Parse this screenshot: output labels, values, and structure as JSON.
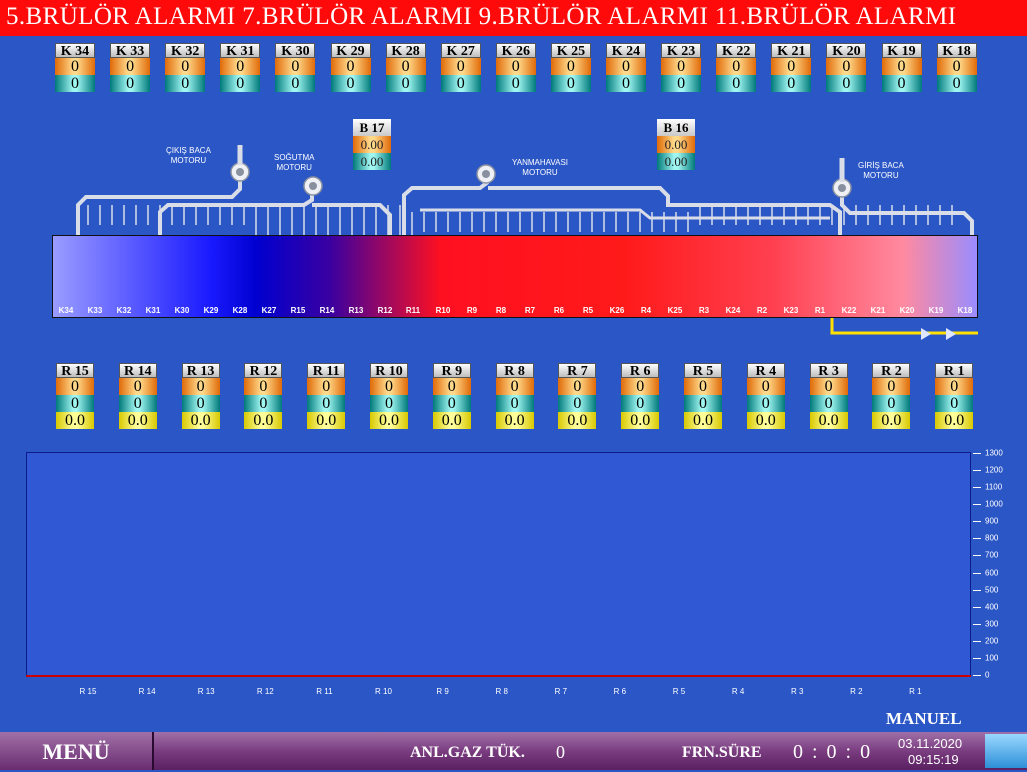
{
  "alarm_banner": "5.BRÜLÖR ALARMI  7.BRÜLÖR ALARMI  9.BRÜLÖR ALARMI  11.BRÜLÖR ALARMI",
  "k_sensors": [
    {
      "label": "K 34",
      "v1": "0",
      "v2": "0"
    },
    {
      "label": "K 33",
      "v1": "0",
      "v2": "0"
    },
    {
      "label": "K 32",
      "v1": "0",
      "v2": "0"
    },
    {
      "label": "K 31",
      "v1": "0",
      "v2": "0"
    },
    {
      "label": "K 30",
      "v1": "0",
      "v2": "0"
    },
    {
      "label": "K 29",
      "v1": "0",
      "v2": "0"
    },
    {
      "label": "K 28",
      "v1": "0",
      "v2": "0"
    },
    {
      "label": "K 27",
      "v1": "0",
      "v2": "0"
    },
    {
      "label": "K 26",
      "v1": "0",
      "v2": "0"
    },
    {
      "label": "K 25",
      "v1": "0",
      "v2": "0"
    },
    {
      "label": "K 24",
      "v1": "0",
      "v2": "0"
    },
    {
      "label": "K 23",
      "v1": "0",
      "v2": "0"
    },
    {
      "label": "K 22",
      "v1": "0",
      "v2": "0"
    },
    {
      "label": "K 21",
      "v1": "0",
      "v2": "0"
    },
    {
      "label": "K 20",
      "v1": "0",
      "v2": "0"
    },
    {
      "label": "K 19",
      "v1": "0",
      "v2": "0"
    },
    {
      "label": "K 18",
      "v1": "0",
      "v2": "0"
    }
  ],
  "b_sensors": [
    {
      "label": "B 17",
      "v1": "0.00",
      "v2": "0.00"
    },
    {
      "label": "B 16",
      "v1": "0.00",
      "v2": "0.00"
    }
  ],
  "motors": {
    "exhaust": "ÇIKIŞ BACA\nMOTORU",
    "cooling": "SOĞUTMA\nMOTORU",
    "combustion": "YANMAHAVASI\nMOTORU",
    "intake": "GİRİŞ BACA\nMOTORU"
  },
  "zones": [
    "K34",
    "K33",
    "K32",
    "K31",
    "K30",
    "K29",
    "K28",
    "K27",
    "R15",
    "R14",
    "R13",
    "R12",
    "R11",
    "R10",
    "R9",
    "R8",
    "R7",
    "R6",
    "R5",
    "K26",
    "R4",
    "K25",
    "R3",
    "K24",
    "R2",
    "K23",
    "R1",
    "K22",
    "K21",
    "K20",
    "K19",
    "K18"
  ],
  "r_sensors": [
    {
      "label": "R 15",
      "v1": "0",
      "v2": "0",
      "v3": "0.0"
    },
    {
      "label": "R 14",
      "v1": "0",
      "v2": "0",
      "v3": "0.0"
    },
    {
      "label": "R 13",
      "v1": "0",
      "v2": "0",
      "v3": "0.0"
    },
    {
      "label": "R 12",
      "v1": "0",
      "v2": "0",
      "v3": "0.0"
    },
    {
      "label": "R 11",
      "v1": "0",
      "v2": "0",
      "v3": "0.0"
    },
    {
      "label": "R 10",
      "v1": "0",
      "v2": "0",
      "v3": "0.0"
    },
    {
      "label": "R 9",
      "v1": "0",
      "v2": "0",
      "v3": "0.0"
    },
    {
      "label": "R 8",
      "v1": "0",
      "v2": "0",
      "v3": "0.0"
    },
    {
      "label": "R 7",
      "v1": "0",
      "v2": "0",
      "v3": "0.0"
    },
    {
      "label": "R 6",
      "v1": "0",
      "v2": "0",
      "v3": "0.0"
    },
    {
      "label": "R 5",
      "v1": "0",
      "v2": "0",
      "v3": "0.0"
    },
    {
      "label": "R 4",
      "v1": "0",
      "v2": "0",
      "v3": "0.0"
    },
    {
      "label": "R 3",
      "v1": "0",
      "v2": "0",
      "v3": "0.0"
    },
    {
      "label": "R 2",
      "v1": "0",
      "v2": "0",
      "v3": "0.0"
    },
    {
      "label": "R 1",
      "v1": "0",
      "v2": "0",
      "v3": "0.0"
    }
  ],
  "chart_data": {
    "type": "bar",
    "categories": [
      "R 15",
      "R 14",
      "R 13",
      "R 12",
      "R 11",
      "R 10",
      "R 9",
      "R 8",
      "R 7",
      "R 6",
      "R 5",
      "R 4",
      "R 3",
      "R 2",
      "R 1"
    ],
    "values": [
      0,
      0,
      0,
      0,
      0,
      0,
      0,
      0,
      0,
      0,
      0,
      0,
      0,
      0,
      0
    ],
    "ylim": [
      0,
      1300
    ],
    "yticks": [
      0,
      100,
      200,
      300,
      400,
      500,
      600,
      700,
      800,
      900,
      1000,
      1100,
      1200,
      1300
    ],
    "legend": "none",
    "grid": false
  },
  "mode": "MANUEL",
  "footer": {
    "menu": "MENÜ",
    "gas_label": "ANL.GAZ TÜK.",
    "gas_value": "0",
    "duration_label": "FRN.SÜRE",
    "duration_value": "0 : 0 : 0",
    "date": "03.11.2020",
    "time": "09:15:19"
  },
  "colors": {
    "alarm": "#ff0a0a",
    "background": "#2b56c6",
    "chart_bg": "#3058d4",
    "footer": "#7a3d80"
  }
}
